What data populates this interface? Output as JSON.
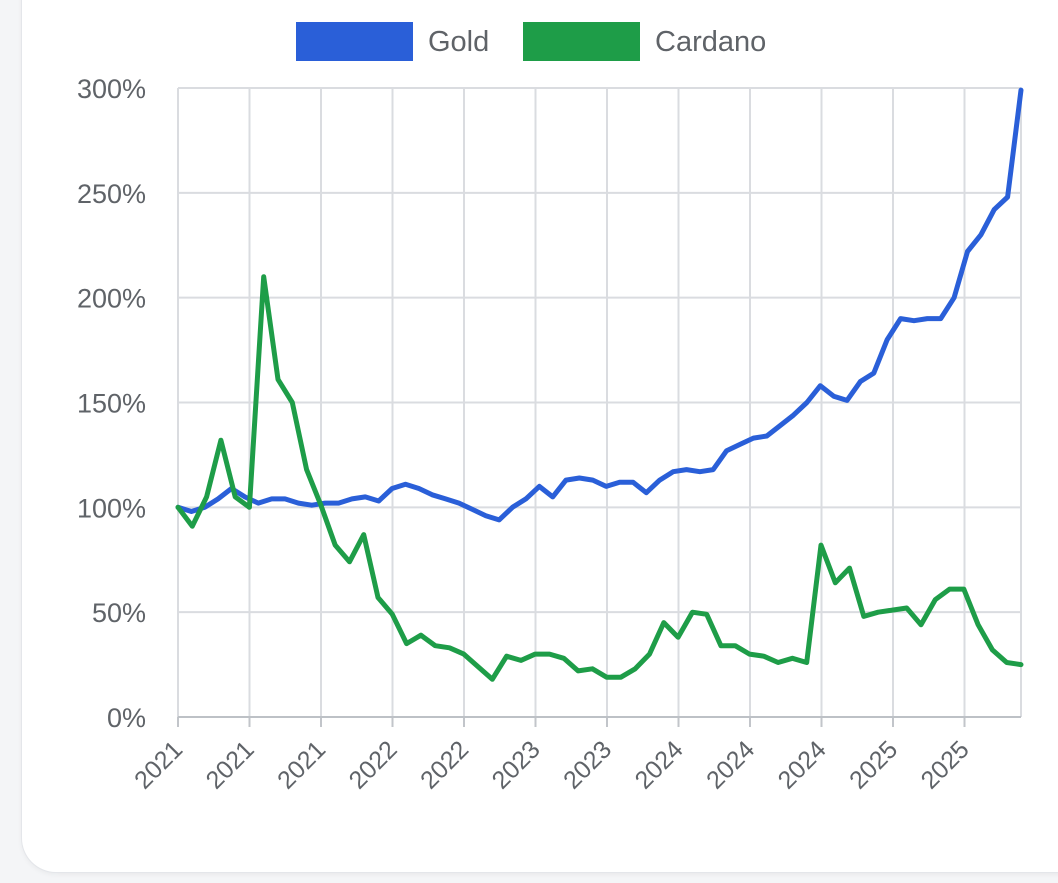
{
  "chart_data": {
    "type": "line",
    "title": "",
    "xlabel": "",
    "ylabel": "",
    "ylim": [
      0,
      300
    ],
    "yticks": [
      "0%",
      "50%",
      "100%",
      "150%",
      "200%",
      "250%",
      "300%"
    ],
    "xticks": [
      "2021",
      "2021",
      "2021",
      "2022",
      "2022",
      "2023",
      "2023",
      "2024",
      "2024",
      "2024",
      "2025",
      "2025"
    ],
    "grid": true,
    "legend_position": "top-center",
    "series": [
      {
        "name": "Gold",
        "color": "#2a5fd8",
        "values": [
          100,
          98,
          100,
          104,
          109,
          105,
          102,
          104,
          104,
          102,
          101,
          102,
          102,
          104,
          105,
          103,
          109,
          111,
          109,
          106,
          104,
          102,
          99,
          96,
          94,
          100,
          104,
          110,
          105,
          113,
          114,
          113,
          110,
          112,
          112,
          107,
          113,
          117,
          118,
          117,
          118,
          127,
          130,
          133,
          134,
          139,
          144,
          150,
          158,
          153,
          151,
          160,
          164,
          180,
          190,
          189,
          190,
          190,
          200,
          222,
          230,
          242,
          248,
          299
        ]
      },
      {
        "name": "Cardano",
        "color": "#1e9d48",
        "values": [
          100,
          91,
          105,
          132,
          105,
          100,
          210,
          161,
          150,
          118,
          101,
          82,
          74,
          87,
          57,
          49,
          35,
          39,
          34,
          33,
          30,
          24,
          18,
          29,
          27,
          30,
          30,
          28,
          22,
          23,
          19,
          19,
          23,
          30,
          45,
          38,
          50,
          49,
          34,
          34,
          30,
          29,
          26,
          28,
          26,
          82,
          64,
          71,
          48,
          50,
          51,
          52,
          44,
          56,
          61,
          61,
          44,
          32,
          26,
          25
        ]
      }
    ]
  }
}
